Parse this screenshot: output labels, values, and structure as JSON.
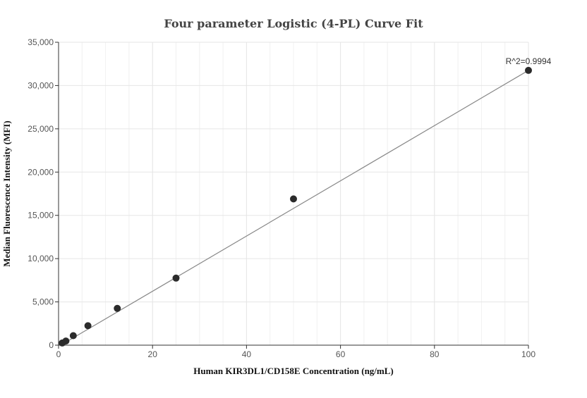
{
  "chart_data": {
    "type": "scatter",
    "title": "Four parameter Logistic (4-PL) Curve Fit",
    "xlabel": "Human KIR3DL1/CD158E Concentration (ng/mL)",
    "ylabel": "Median Fluorescence Intensity (MFI)",
    "xlim": [
      0,
      100
    ],
    "ylim": [
      0,
      35000
    ],
    "x_ticks": [
      0,
      20,
      40,
      60,
      80,
      100
    ],
    "y_ticks": [
      0,
      5000,
      10000,
      15000,
      20000,
      25000,
      30000,
      35000
    ],
    "x_tick_labels": [
      "0",
      "20",
      "40",
      "60",
      "80",
      "100"
    ],
    "y_tick_labels": [
      "0",
      "5,000",
      "10,000",
      "15,000",
      "20,000",
      "25,000",
      "30,000",
      "35,000"
    ],
    "grid": true,
    "series": [
      {
        "x": [
          0.78,
          1.56,
          3.13,
          6.25,
          12.5,
          25,
          50,
          100
        ],
        "y": [
          250,
          480,
          1100,
          2250,
          4250,
          7750,
          16900,
          31750
        ]
      }
    ],
    "fit_line": {
      "x": [
        0,
        100
      ],
      "y": [
        -150,
        31750
      ]
    },
    "annotation": "R^2=0.9994",
    "colors": {
      "point": "#2b2b2b",
      "fit_line": "#888888",
      "grid": "#e6e6e6",
      "axis": "#333333"
    }
  }
}
